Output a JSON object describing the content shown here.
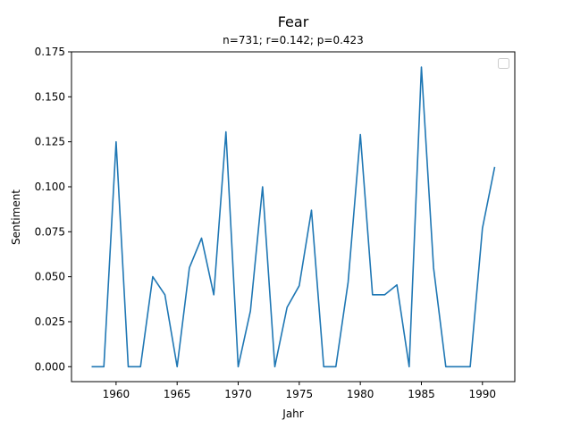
{
  "chart_data": {
    "type": "line",
    "title": "Fear",
    "subtitle": "n=731; r=0.142; p=0.423",
    "xlabel": "Jahr",
    "ylabel": "Sentiment",
    "xlim": [
      1956.35,
      1992.65
    ],
    "ylim": [
      -0.0083,
      0.175
    ],
    "xticks": [
      1960,
      1965,
      1970,
      1975,
      1980,
      1985,
      1990
    ],
    "yticks": [
      "0.000",
      "0.025",
      "0.050",
      "0.075",
      "0.100",
      "0.125",
      "0.150",
      "0.175"
    ],
    "legend": "top-right (empty)",
    "series": [
      {
        "name": "Fear",
        "color": "#1f77b4",
        "x": [
          1958,
          1959,
          1960,
          1961,
          1962,
          1963,
          1964,
          1965,
          1966,
          1967,
          1968,
          1969,
          1970,
          1971,
          1972,
          1973,
          1974,
          1975,
          1976,
          1977,
          1978,
          1979,
          1980,
          1981,
          1982,
          1983,
          1984,
          1985,
          1986,
          1987,
          1988,
          1989,
          1990,
          1991
        ],
        "y": [
          0.0,
          0.0,
          0.125,
          0.0,
          0.0,
          0.05,
          0.04,
          0.0,
          0.055,
          0.0715,
          0.04,
          0.1305,
          0.0,
          0.031,
          0.1,
          0.0,
          0.033,
          0.045,
          0.087,
          0.0,
          0.0,
          0.047,
          0.129,
          0.04,
          0.04,
          0.0455,
          0.0,
          0.1665,
          0.055,
          0.0,
          0.0,
          0.0,
          0.077,
          0.111
        ]
      }
    ]
  }
}
